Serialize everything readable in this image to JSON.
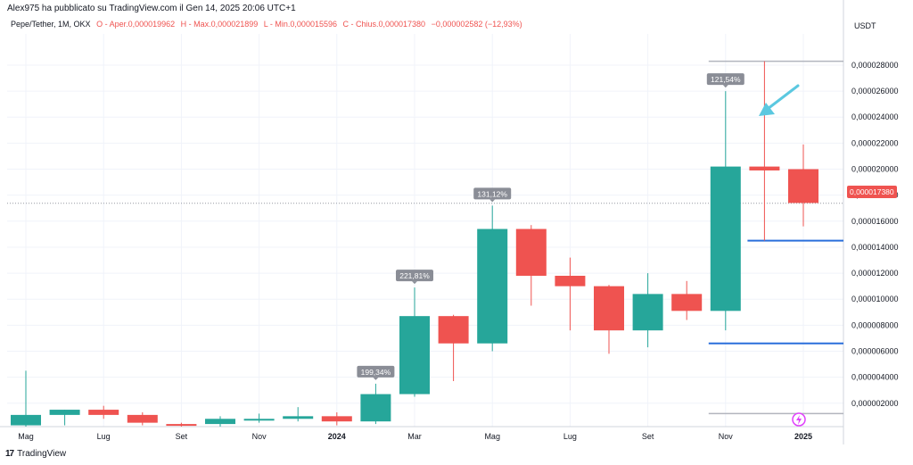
{
  "header": {
    "publisher": "Alex975 ha pubblicato su TradingView.com il Gen 14, 2025 20:06 UTC+1"
  },
  "legend": {
    "symbol": "Pepe/Tether, 1M, OKX",
    "open": "O - Aper.0,000019962",
    "high": "H - Max.0,000021899",
    "low": "L - Min.0,000015596",
    "close": "C - Chius.0,000017380",
    "change": "−0,000002582 (−12,93%)"
  },
  "axis": {
    "unit": "USDT",
    "ticks": [
      "0,000028000",
      "0,000026000",
      "0,000024000",
      "0,000022000",
      "0,000020000",
      "0,000018000",
      "0,000016000",
      "0,000014000",
      "0,000012000",
      "0,000010000",
      "0,000008000",
      "0,000006000",
      "0,000004000",
      "0,000002000"
    ],
    "last_price": "0,000017380"
  },
  "time_axis": [
    "Mag",
    "Lug",
    "Set",
    "Nov",
    "2024",
    "Mar",
    "Mag",
    "Lug",
    "Set",
    "Nov",
    "2025"
  ],
  "footer": {
    "brand": "TradingView"
  },
  "colors": {
    "up": "#26a69a",
    "down": "#ef5350",
    "line": "#2a6fdb",
    "arrow": "#5bc8e0"
  },
  "chart_data": {
    "type": "candlestick",
    "timeframe": "1M",
    "unit": "USDT",
    "ylim": [
      2e-07,
      3.04e-05
    ],
    "candles": [
      {
        "open": 3e-07,
        "high": 4.5e-06,
        "low": 2e-07,
        "close": 1.1e-06
      },
      {
        "open": 1.1e-06,
        "high": 1.5e-06,
        "low": 3e-07,
        "close": 1.5e-06
      },
      {
        "open": 1.5e-06,
        "high": 1.8e-06,
        "low": 8e-07,
        "close": 1.1e-06
      },
      {
        "open": 1.1e-06,
        "high": 1.3e-06,
        "low": 3e-07,
        "close": 5e-07
      },
      {
        "open": 4e-07,
        "high": 5e-07,
        "low": 2e-07,
        "close": 3e-07
      },
      {
        "open": 4e-07,
        "high": 1e-06,
        "low": 2e-07,
        "close": 8e-07
      },
      {
        "open": 8e-07,
        "high": 1.2e-06,
        "low": 5e-07,
        "close": 8e-07
      },
      {
        "open": 8e-07,
        "high": 1.7e-06,
        "low": 6e-07,
        "close": 1e-06
      },
      {
        "open": 1e-06,
        "high": 1.3e-06,
        "low": 3e-07,
        "close": 6e-07
      },
      {
        "open": 6e-07,
        "high": 3.5e-06,
        "low": 4e-07,
        "close": 2.7e-06
      },
      {
        "open": 2.7e-06,
        "high": 1.09e-05,
        "low": 2.5e-06,
        "close": 8.7e-06
      },
      {
        "open": 8.7e-06,
        "high": 8.8e-06,
        "low": 3.7e-06,
        "close": 6.6e-06
      },
      {
        "open": 6.6e-06,
        "high": 1.72e-05,
        "low": 6e-06,
        "close": 1.54e-05
      },
      {
        "open": 1.54e-05,
        "high": 1.57e-05,
        "low": 9.5e-06,
        "close": 1.18e-05
      },
      {
        "open": 1.18e-05,
        "high": 1.32e-05,
        "low": 7.6e-06,
        "close": 1.1e-05
      },
      {
        "open": 1.1e-05,
        "high": 1.11e-05,
        "low": 5.8e-06,
        "close": 7.6e-06
      },
      {
        "open": 7.6e-06,
        "high": 1.2e-05,
        "low": 6.3e-06,
        "close": 1.04e-05
      },
      {
        "open": 1.04e-05,
        "high": 1.14e-05,
        "low": 8.4e-06,
        "close": 9.1e-06
      },
      {
        "open": 9.1e-06,
        "high": 2.6e-05,
        "low": 7.6e-06,
        "close": 2.02e-05
      },
      {
        "open": 2.02e-05,
        "high": 2.83e-05,
        "low": 1.45e-05,
        "close": 1.99e-05
      },
      {
        "open": 2e-05,
        "high": 2.19e-05,
        "low": 1.56e-05,
        "close": 1.74e-05
      }
    ],
    "annotations": [
      {
        "candle": 9,
        "label": "199,34%"
      },
      {
        "candle": 10,
        "label": "221,81%"
      },
      {
        "candle": 12,
        "label": "131,12%"
      },
      {
        "candle": 18,
        "label": "121,54%"
      }
    ],
    "horizontal_lines": [
      {
        "value": 1.45e-05,
        "style": "blue",
        "from_candle": 19
      },
      {
        "value": 6.6e-06,
        "style": "blue",
        "from_candle": 18
      },
      {
        "value": 2.83e-05,
        "style": "grey",
        "from_candle": 18
      },
      {
        "value": 1.2e-06,
        "style": "grey",
        "from_candle": 18
      }
    ],
    "last_price_line": 1.738e-05
  }
}
